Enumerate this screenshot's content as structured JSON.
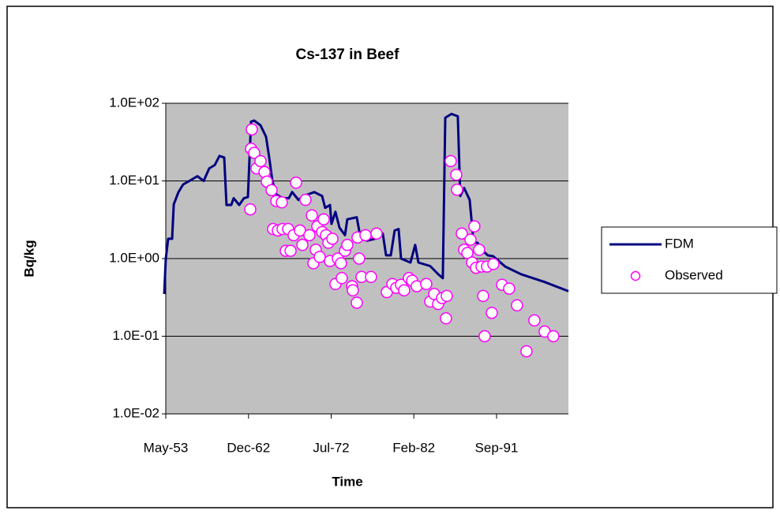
{
  "chart_data": {
    "type": "line",
    "title": "Cs-137 in Beef",
    "x_label": "Time",
    "y_label": "Bq/kg",
    "yscale": "log",
    "grid": true,
    "legend": "right",
    "xlim": [
      1953.33,
      2000
    ],
    "ylim": [
      0.01,
      100
    ],
    "xticks": [
      {
        "value": 1953.33,
        "label": "May-53"
      },
      {
        "value": 1962.92,
        "label": "Dec-62"
      },
      {
        "value": 1972.5,
        "label": "Jul-72"
      },
      {
        "value": 1982.08,
        "label": "Feb-82"
      },
      {
        "value": 1991.67,
        "label": "Sep-91"
      }
    ],
    "yticks": [
      {
        "value": 0.01,
        "label": "1.0E-02"
      },
      {
        "value": 0.1,
        "label": "1.0E-01"
      },
      {
        "value": 1,
        "label": "1.0E+00"
      },
      {
        "value": 10,
        "label": "1.0E+01"
      },
      {
        "value": 100,
        "label": "1.0E+02"
      }
    ],
    "series": [
      {
        "name": "FDM",
        "color": "#000080",
        "style": "line",
        "x": [
          1953.15,
          1953.33,
          1953.6,
          1954.06,
          1954.25,
          1954.8,
          1955.34,
          1956.07,
          1956.99,
          1957.72,
          1958.36,
          1959.0,
          1959.55,
          1960.1,
          1960.37,
          1960.92,
          1961.2,
          1961.84,
          1962.39,
          1962.85,
          1963.21,
          1963.58,
          1964.31,
          1964.95,
          1965.32,
          1965.68,
          1966.14,
          1966.87,
          1967.6,
          1967.97,
          1968.7,
          1969.34,
          1970.53,
          1971.45,
          1971.81,
          1972.36,
          1972.54,
          1973.0,
          1973.46,
          1974.1,
          1974.37,
          1975.47,
          1975.84,
          1976.66,
          1977.57,
          1978.03,
          1978.49,
          1978.86,
          1979.41,
          1979.86,
          1980.32,
          1980.6,
          1981.69,
          1982.24,
          1982.61,
          1983.98,
          1984.9,
          1985.44,
          1985.72,
          1986.45,
          1987.18,
          1987.46,
          1987.91,
          1988.55,
          1989.01,
          1989.47,
          1989.93,
          1990.66,
          1991.3,
          1992.67,
          1994.5,
          1997.24,
          2000
        ],
        "values": [
          0.35,
          1.0,
          1.8,
          1.8,
          5,
          7.2,
          9,
          10,
          11.5,
          10,
          14.5,
          16,
          21,
          20,
          4.9,
          4.9,
          6,
          4.9,
          6,
          6.2,
          58,
          60,
          52,
          37,
          20,
          10,
          6.7,
          6,
          6,
          7.2,
          5.7,
          6.4,
          7.2,
          6.4,
          4.5,
          4.9,
          2.8,
          4,
          2.5,
          2,
          3.2,
          3.4,
          2,
          1.7,
          1.8,
          2,
          2.1,
          1.1,
          1.1,
          2.3,
          2.4,
          1.0,
          0.89,
          1.5,
          0.89,
          0.8,
          0.63,
          0.56,
          65,
          73,
          68,
          6.4,
          8.1,
          5.7,
          1.6,
          1.6,
          1.3,
          1.1,
          1.07,
          0.79,
          0.63,
          0.5,
          0.38
        ]
      },
      {
        "name": "Observed",
        "color": "#ff00ff",
        "style": "marker",
        "x": [
          1963.3,
          1963.21,
          1963.58,
          1963.85,
          1964.31,
          1964.77,
          1965.04,
          1965.59,
          1966.14,
          1966.78,
          1963.12,
          1965.77,
          1966.32,
          1966.87,
          1967.51,
          1967.24,
          1967.79,
          1968.15,
          1968.43,
          1968.88,
          1969.16,
          1969.52,
          1969.98,
          1970.26,
          1970.44,
          1970.71,
          1970.9,
          1971.17,
          1971.45,
          1971.63,
          1971.9,
          1972.18,
          1972.36,
          1972.64,
          1973.0,
          1973.27,
          1973.64,
          1973.73,
          1974.1,
          1974.37,
          1974.92,
          1975.01,
          1975.47,
          1975.56,
          1975.74,
          1976.02,
          1976.48,
          1977.12,
          1977.76,
          1978.95,
          1979.59,
          1980.05,
          1980.6,
          1980.96,
          1981.51,
          1981.88,
          1982.42,
          1983.52,
          1983.98,
          1984.44,
          1984.9,
          1985.35,
          1985.81,
          1985.9,
          1986.36,
          1987.0,
          1987.09,
          1987.64,
          1987.91,
          1988.28,
          1988.65,
          1988.83,
          1989.1,
          1989.29,
          1989.65,
          1989.93,
          1990.11,
          1990.29,
          1990.57,
          1991.12,
          1991.3,
          1992.3,
          1993.13,
          1994.04,
          1995.14,
          1996.05,
          1997.24,
          1998.25
        ],
        "values": [
          46,
          26,
          23,
          14.5,
          18,
          13,
          9.8,
          7.6,
          5.5,
          5.3,
          4.3,
          2.4,
          2.3,
          2.4,
          2.4,
          1.26,
          1.26,
          2,
          9.5,
          2.3,
          1.5,
          5.7,
          2,
          3.6,
          0.87,
          1.3,
          2.6,
          1.05,
          2.2,
          3.2,
          2,
          1.6,
          0.93,
          1.8,
          0.47,
          1.0,
          0.87,
          0.56,
          1.26,
          1.5,
          0.44,
          0.39,
          0.27,
          1.87,
          1.0,
          0.58,
          2,
          0.58,
          2.1,
          0.37,
          0.47,
          0.42,
          0.46,
          0.39,
          0.56,
          0.52,
          0.44,
          0.47,
          0.28,
          0.35,
          0.26,
          0.31,
          0.17,
          0.33,
          18,
          12,
          7.7,
          2.1,
          1.3,
          1.18,
          1.75,
          0.89,
          2.6,
          0.76,
          1.3,
          0.79,
          0.33,
          0.1,
          0.79,
          0.2,
          0.85,
          0.46,
          0.41,
          0.25,
          0.064,
          0.16,
          0.115,
          0.1
        ]
      }
    ]
  }
}
